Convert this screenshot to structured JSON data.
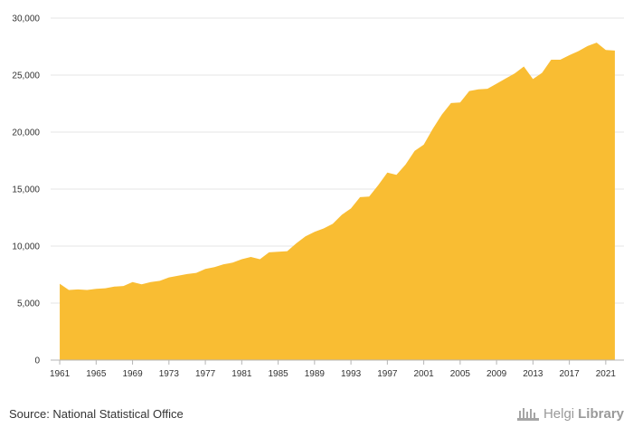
{
  "chart_data": {
    "type": "area",
    "title": "",
    "xlabel": "",
    "ylabel": "",
    "ylim": [
      0,
      30000
    ],
    "yticks": [
      "0",
      "5,000",
      "10,000",
      "15,000",
      "20,000",
      "25,000",
      "30,000"
    ],
    "ytick_values": [
      0,
      5000,
      10000,
      15000,
      20000,
      25000,
      30000
    ],
    "xticks": [
      "1961",
      "1965",
      "1969",
      "1973",
      "1977",
      "1981",
      "1985",
      "1989",
      "1993",
      "1997",
      "2001",
      "2005",
      "2009",
      "2013",
      "2017",
      "2021"
    ],
    "grid": true,
    "legend": "none",
    "color": "#F9BD33",
    "series": [
      {
        "x": [
          1961,
          1962,
          1963,
          1964,
          1965,
          1966,
          1967,
          1968,
          1969,
          1970,
          1971,
          1972,
          1973,
          1974,
          1975,
          1976,
          1977,
          1978,
          1979,
          1980,
          1981,
          1982,
          1983,
          1984,
          1985,
          1986,
          1987,
          1988,
          1989,
          1990,
          1991,
          1992,
          1993,
          1994,
          1995,
          1996,
          1997,
          1998,
          1999,
          2000,
          2001,
          2002,
          2003,
          2004,
          2005,
          2006,
          2007,
          2008,
          2009,
          2010,
          2011,
          2012,
          2013,
          2014,
          2015,
          2016,
          2017,
          2018,
          2019,
          2020,
          2021,
          2022
        ],
        "values": [
          6700,
          6150,
          6200,
          6150,
          6250,
          6300,
          6450,
          6500,
          6850,
          6650,
          6850,
          6950,
          7250,
          7400,
          7550,
          7650,
          8000,
          8150,
          8400,
          8550,
          8850,
          9050,
          8850,
          9450,
          9500,
          9550,
          10250,
          10850,
          11250,
          11550,
          11950,
          12750,
          13300,
          14300,
          14350,
          15350,
          16450,
          16250,
          17150,
          18350,
          18900,
          20300,
          21550,
          22550,
          22600,
          23600,
          23750,
          23800,
          24250,
          24700,
          25150,
          25750,
          24650,
          25200,
          26350,
          26350,
          26750,
          27100,
          27550,
          27850,
          27200,
          27150
        ]
      }
    ]
  },
  "footer": {
    "source": "Source: National Statistical Office",
    "brand_part1": "Helgi",
    "brand_part2": "Library",
    "logo_icon": "building-icon"
  }
}
